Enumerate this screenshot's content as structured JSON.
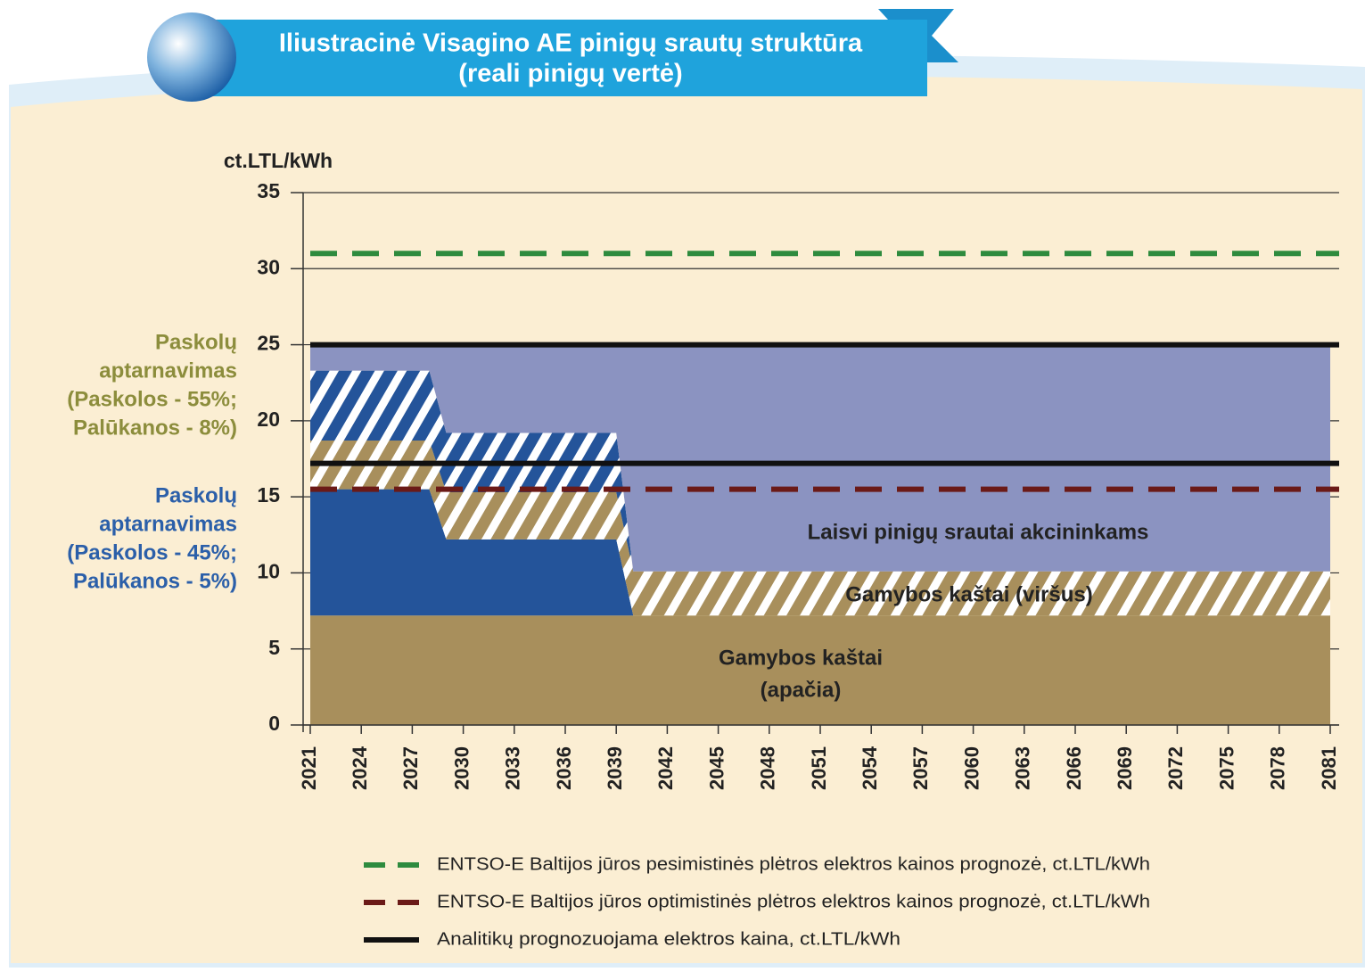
{
  "chart_data": {
    "type": "stacked-area",
    "title": [
      "Iliustracinė Visagino AE pinigų srautų struktūra",
      "(reali pinigų vertė)"
    ],
    "y_label": "ct.LTL/kWh",
    "x": [
      2021,
      2028,
      2029,
      2039,
      2040,
      2081
    ],
    "xlim": [
      2021,
      2081
    ],
    "xticks": [
      2021,
      2024,
      2027,
      2030,
      2033,
      2036,
      2039,
      2042,
      2045,
      2048,
      2051,
      2054,
      2057,
      2060,
      2063,
      2066,
      2069,
      2072,
      2075,
      2078,
      2081
    ],
    "ylim": [
      0,
      35
    ],
    "yticks": [
      0,
      5,
      10,
      15,
      20,
      25,
      30,
      35
    ],
    "grid": true,
    "series": [
      {
        "name": [
          "Gamybos kaštai",
          "(apačia)"
        ],
        "color": "#a88f5c",
        "hatch": false,
        "values": [
          7.2,
          7.2,
          7.2,
          7.2,
          7.2,
          7.2
        ]
      },
      {
        "name": [
          "Paskolų",
          "aptarnavimas",
          "(Paskolos - 45%;",
          "Palūkanos - 5%)"
        ],
        "color": "#24549a",
        "hatch": false,
        "label_color": "#2b5fa9",
        "values": [
          8.3,
          8.3,
          5.0,
          5.0,
          0,
          0
        ]
      },
      {
        "name": [
          "Gamybos kaštai (viršus)"
        ],
        "color": "#a88f5c",
        "hatch": true,
        "values": [
          3.2,
          3.2,
          3.1,
          3.1,
          2.9,
          2.9
        ]
      },
      {
        "name": [
          "Paskolų",
          "aptarnavimas",
          "(Paskolos - 55%;",
          "Palūkanos - 8%)"
        ],
        "color": "#24549a",
        "hatch": true,
        "label_color": "#8c8d3c",
        "values": [
          4.6,
          4.6,
          3.9,
          3.9,
          0,
          0
        ]
      },
      {
        "name": [
          "Laisvi pinigų srautai akcininkams"
        ],
        "color": "#8b93c1",
        "hatch": false,
        "values": [
          1.7,
          1.7,
          5.8,
          5.8,
          14.9,
          14.9
        ]
      }
    ],
    "lines": [
      {
        "name": "ENTSO-E Baltijos jūros pesimistinės plėtros elektros kainos prognozė, ct.LTL/kWh",
        "color": "#2e8b3e",
        "dashed": true,
        "levels": [
          31
        ]
      },
      {
        "name": "ENTSO-E Baltijos jūros optimistinės plėtros elektros kainos prognozė, ct.LTL/kWh",
        "color": "#6b1a17",
        "dashed": true,
        "levels": [
          15.5
        ]
      },
      {
        "name": "Analitikų prognozuojama elektros kaina, ct.LTL/kWh",
        "color": "#111111",
        "dashed": false,
        "levels": [
          25,
          17.2
        ]
      }
    ]
  }
}
